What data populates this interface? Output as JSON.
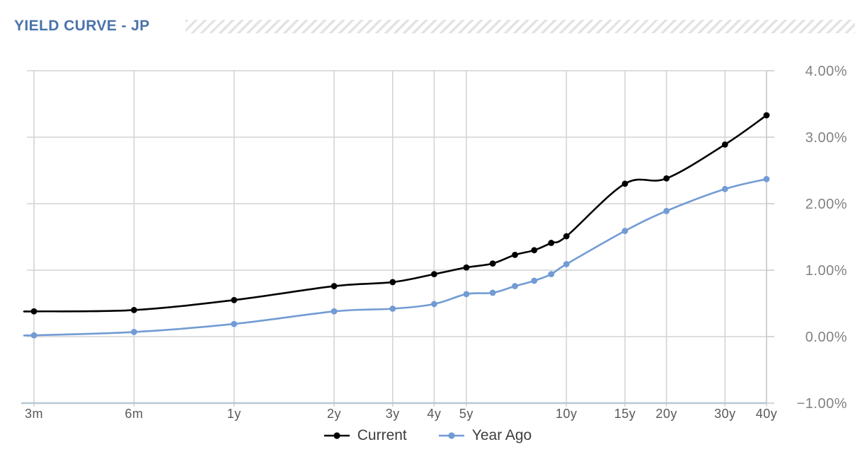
{
  "header": {
    "title": "YIELD CURVE - JP"
  },
  "colors": {
    "title": "#4a73ab",
    "gridline": "#d4d4d4",
    "axis_bottom": "#b7c8d4",
    "axis_right": "#c6cdd2",
    "x_label": "#595959",
    "y_label": "#828282",
    "legend_text": "#3d3d3d",
    "hatch_stripe": "#e3e3e3"
  },
  "chart_data": {
    "type": "line",
    "title": "YIELD CURVE - JP",
    "marker": "circle",
    "grid": true,
    "legend_position": "bottom",
    "x_axis": {
      "scale": "log",
      "unit": "maturity",
      "tick_labels": [
        "3m",
        "6m",
        "1y",
        "2y",
        "3y",
        "4y",
        "5y",
        "10y",
        "15y",
        "20y",
        "30y",
        "40y"
      ],
      "tick_years": [
        0.25,
        0.5,
        1,
        2,
        3,
        4,
        5,
        10,
        15,
        20,
        30,
        40
      ]
    },
    "y_axis": {
      "side": "right",
      "min": -1.0,
      "max": 4.0,
      "tick_values": [
        4,
        3,
        2,
        1,
        0,
        -1
      ],
      "tick_labels": [
        "4.00%",
        "3.00%",
        "2.00%",
        "1.00%",
        "0.00%",
        "−1.00%"
      ]
    },
    "categories": [
      "3m",
      "6m",
      "1y",
      "2y",
      "3y",
      "4y",
      "5y",
      "6y",
      "7y",
      "8y",
      "9y",
      "10y",
      "15y",
      "20y",
      "30y",
      "40y"
    ],
    "x_years": [
      0.25,
      0.5,
      1,
      2,
      3,
      4,
      5,
      6,
      7,
      8,
      9,
      10,
      15,
      20,
      30,
      40
    ],
    "series": [
      {
        "name": "Current",
        "color": "#000000",
        "values": [
          0.38,
          0.4,
          0.55,
          0.76,
          0.82,
          0.94,
          1.04,
          1.1,
          1.23,
          1.3,
          1.41,
          1.51,
          2.3,
          2.38,
          2.89,
          3.33
        ]
      },
      {
        "name": "Year Ago",
        "color": "#729bd4",
        "values": [
          0.02,
          0.07,
          0.19,
          0.38,
          0.42,
          0.49,
          0.64,
          0.66,
          0.76,
          0.84,
          0.94,
          1.09,
          1.59,
          1.89,
          2.22,
          2.37
        ]
      }
    ]
  }
}
